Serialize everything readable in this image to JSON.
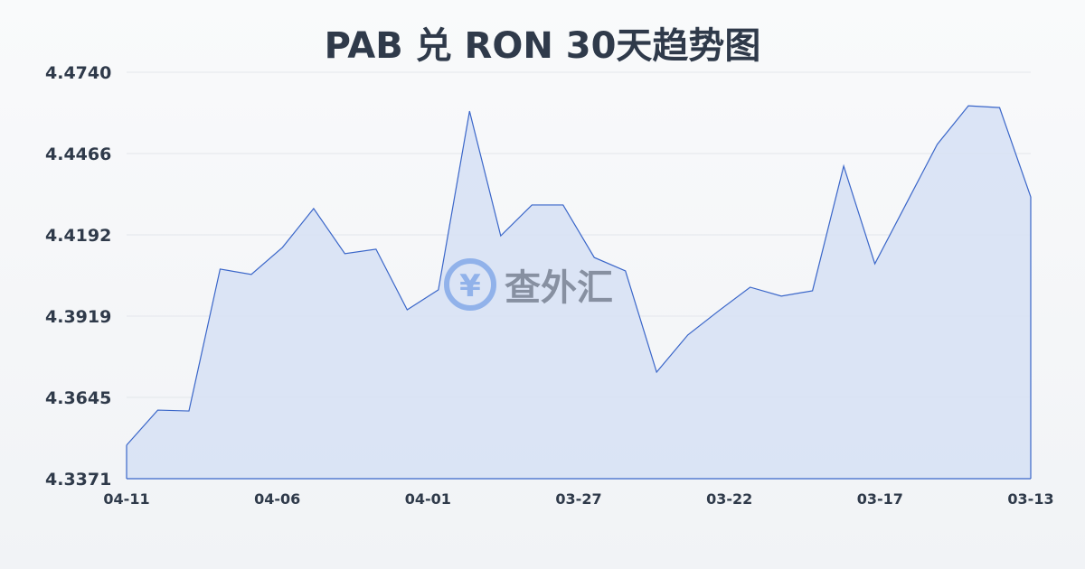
{
  "title": "PAB 兑 RON 30天趋势图",
  "watermark": "查外汇",
  "chart_data": {
    "type": "area",
    "title": "PAB 兑 RON 30天趋势图",
    "xlabel": "",
    "ylabel": "",
    "ylim": [
      4.3371,
      4.474
    ],
    "y_ticks": [
      "4.4740",
      "4.4466",
      "4.4192",
      "4.3919",
      "4.3645",
      "4.3371"
    ],
    "x_ticks": [
      "04-11",
      "04-06",
      "04-01",
      "03-27",
      "03-22",
      "03-17",
      "03-13"
    ],
    "grid": true,
    "colors": {
      "line": "#3a66c9",
      "fill": "#d6e0f5"
    },
    "values": [
      4.3484,
      4.3602,
      4.3599,
      4.4077,
      4.4059,
      4.415,
      4.4281,
      4.4129,
      4.4144,
      4.394,
      4.4007,
      4.4609,
      4.4189,
      4.4293,
      4.4293,
      4.4116,
      4.4071,
      4.373,
      4.3855,
      4.3937,
      4.4016,
      4.3986,
      4.4004,
      4.4424,
      4.4095,
      4.4296,
      4.4497,
      4.4627,
      4.4621,
      4.432
    ]
  }
}
